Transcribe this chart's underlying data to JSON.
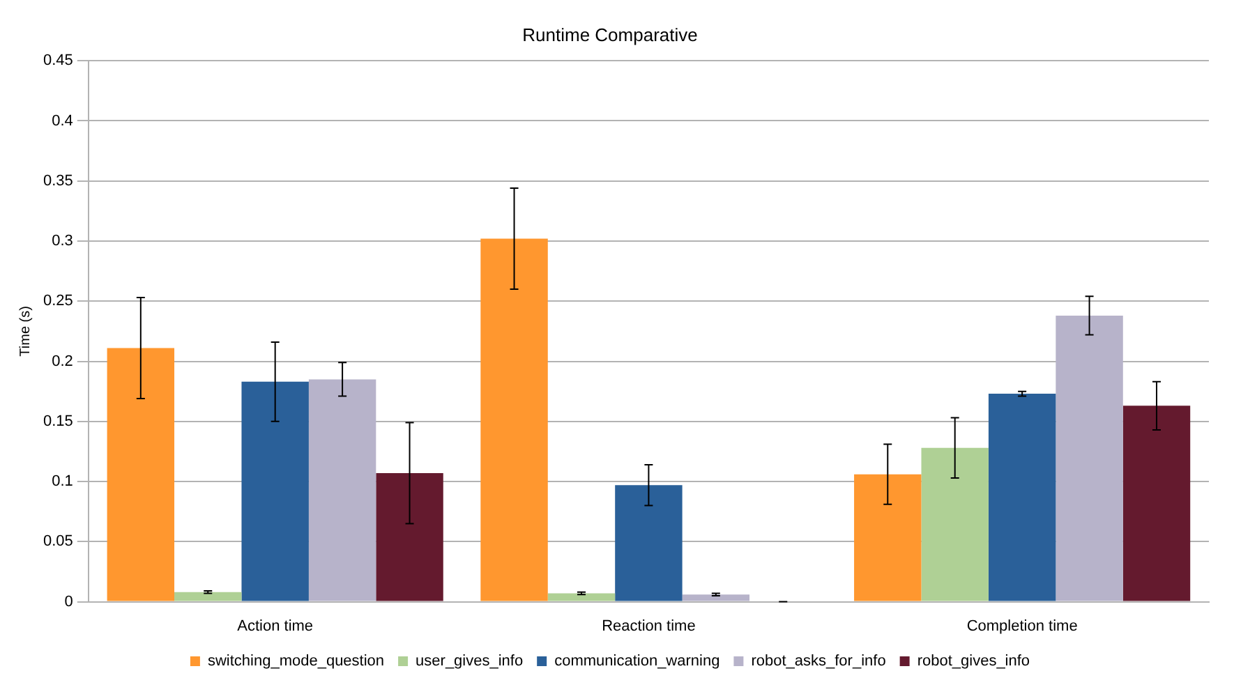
{
  "chart_data": {
    "type": "bar",
    "title": "Runtime Comparative",
    "ylabel": "Time (s)",
    "categories": [
      "Action time",
      "Reaction time",
      "Completion time"
    ],
    "series": [
      {
        "name": "switching_mode_question",
        "color": "#ff972f",
        "values": [
          0.211,
          0.302,
          0.106
        ],
        "errors": [
          0.042,
          0.042,
          0.025
        ]
      },
      {
        "name": "user_gives_info",
        "color": "#afd095",
        "values": [
          0.008,
          0.007,
          0.128
        ],
        "errors": [
          0.001,
          0.001,
          0.025
        ]
      },
      {
        "name": "communication_warning",
        "color": "#2a6099",
        "values": [
          0.183,
          0.097,
          0.173
        ],
        "errors": [
          0.033,
          0.017,
          0.002
        ]
      },
      {
        "name": "robot_asks_for_info",
        "color": "#b7b3ca",
        "values": [
          0.185,
          0.006,
          0.238
        ],
        "errors": [
          0.014,
          0.001,
          0.016
        ]
      },
      {
        "name": "robot_gives_info",
        "color": "#641a2e",
        "values": [
          0.107,
          0,
          0.163
        ],
        "errors": [
          0.042,
          0,
          0.02
        ]
      }
    ],
    "ylim": [
      0,
      0.45
    ],
    "yticks": [
      0,
      0.05,
      0.1,
      0.15,
      0.2,
      0.25,
      0.3,
      0.35,
      0.4,
      0.45
    ],
    "grid": "y",
    "legend": "bottom"
  }
}
